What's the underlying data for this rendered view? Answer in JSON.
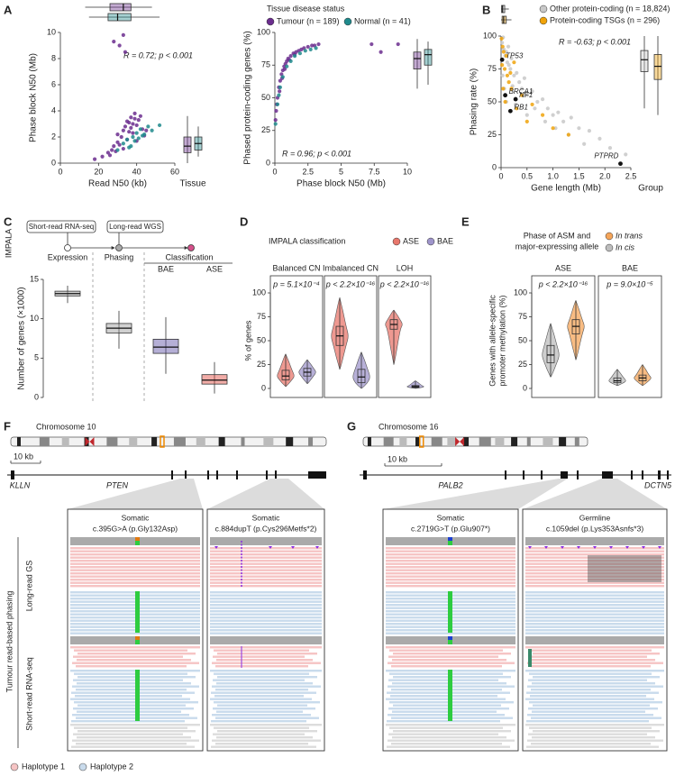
{
  "chart_data": [
    {
      "type": "scatter",
      "panel": "A",
      "xlabel": "Read N50 (kb)",
      "ylabel": "Phase block N50 (Mb)",
      "side_label": "Tissue",
      "annotation": "R = 0.72; p < 0.001",
      "xlim": [
        0,
        60
      ],
      "xticks": [
        0,
        20,
        40,
        60
      ],
      "ylim": [
        0,
        10
      ],
      "yticks": [
        0,
        2,
        4,
        6,
        8,
        10
      ],
      "series": [
        {
          "color": "#6b2d8e",
          "x": [
            22,
            25,
            27,
            28,
            29,
            30,
            30,
            31,
            32,
            33,
            33,
            34,
            35,
            35,
            36,
            37,
            37,
            38,
            39,
            40,
            41,
            42,
            43,
            44,
            28,
            31,
            34,
            36,
            38,
            40,
            18,
            26,
            33,
            39,
            45
          ],
          "values": [
            0.5,
            0.8,
            1.0,
            1.3,
            0.9,
            1.6,
            2.2,
            1.4,
            2.0,
            2.5,
            1.1,
            2.8,
            3.2,
            1.8,
            2.4,
            3.5,
            2.7,
            3.0,
            3.8,
            2.9,
            3.3,
            3.6,
            2.6,
            2.1,
            9.3,
            9.0,
            8.5,
            3.1,
            2.3,
            1.7,
            0.3,
            0.6,
            9.8,
            3.4,
            2.5
          ],
          "top_box": [
            13,
            26,
            33,
            37,
            48
          ],
          "side_box": [
            0,
            0.8,
            1.3,
            2.0,
            3.6
          ]
        },
        {
          "color": "#1f8a8c",
          "x": [
            30,
            33,
            35,
            37,
            38,
            40,
            41,
            42,
            44,
            46,
            48,
            52,
            36,
            39,
            43
          ],
          "values": [
            1.0,
            1.5,
            1.8,
            1.3,
            2.0,
            2.3,
            1.9,
            2.6,
            2.2,
            2.8,
            2.5,
            2.9,
            1.2,
            1.7,
            2.1
          ],
          "top_box": [
            15,
            25,
            30,
            37,
            52
          ],
          "side_box": [
            0.5,
            1.0,
            1.5,
            2.0,
            2.8
          ]
        }
      ]
    },
    {
      "type": "scatter",
      "xlabel": "Phase block N50 (Mb)",
      "ylabel": "Phased protein-coding genes (%)",
      "annotation": "R = 0.96; p < 0.001",
      "legend_title": "Tissue disease status",
      "xlim": [
        0,
        10
      ],
      "xticks": [
        0,
        2.5,
        5,
        7.5,
        10
      ],
      "ylim": [
        0,
        100
      ],
      "yticks": [
        0,
        25,
        50,
        75,
        100
      ],
      "series": [
        {
          "name": "Tumour (n = 189)",
          "color": "#6b2d8e",
          "x": [
            0.1,
            0.2,
            0.3,
            0.4,
            0.5,
            0.6,
            0.7,
            0.8,
            0.9,
            1.0,
            1.2,
            1.4,
            1.6,
            1.8,
            2.0,
            2.2,
            2.5,
            2.8,
            3.0,
            3.3,
            0.15,
            0.35,
            0.55,
            0.75,
            1.1,
            1.5,
            7.3,
            8.0,
            9.3,
            0.05
          ],
          "values": [
            40,
            50,
            58,
            63,
            68,
            71,
            74,
            76,
            78,
            80,
            82,
            84,
            85,
            86,
            87,
            88,
            89,
            90,
            90,
            91,
            45,
            55,
            65,
            72,
            79,
            83,
            91,
            85,
            91,
            33
          ],
          "side_box": [
            57,
            72,
            80,
            85,
            95
          ]
        },
        {
          "name": "Normal (n = 41)",
          "color": "#1f8a8c",
          "x": [
            0.2,
            0.4,
            0.6,
            0.9,
            1.2,
            1.5,
            1.9,
            2.3,
            2.7,
            3.1,
            0.05,
            0.3
          ],
          "values": [
            45,
            58,
            66,
            74,
            78,
            82,
            84,
            86,
            87,
            88,
            30,
            52
          ],
          "side_box": [
            60,
            75,
            83,
            87,
            93
          ]
        }
      ]
    },
    {
      "type": "scatter",
      "panel": "B",
      "xlabel": "Gene length (Mb)",
      "ylabel": "Phasing rate (%)",
      "side_label": "Group",
      "annotation": "R = -0.63; p < 0.001",
      "xlim": [
        0,
        2.5
      ],
      "xticks": [
        0,
        0.5,
        {
          "value": 1,
          "label": "1.0"
        },
        1.5,
        {
          "value": 2,
          "label": "2.0"
        },
        2.5
      ],
      "ylim": [
        0,
        100
      ],
      "yticks": [
        0,
        25,
        50,
        75,
        100
      ],
      "series": [
        {
          "name": "Other protein-coding (n = 18,824)",
          "color": "#c8c8c8",
          "x": [
            0.02,
            0.05,
            0.08,
            0.1,
            0.12,
            0.15,
            0.18,
            0.2,
            0.25,
            0.3,
            0.35,
            0.4,
            0.45,
            0.5,
            0.6,
            0.7,
            0.8,
            0.9,
            1.0,
            1.1,
            1.2,
            1.35,
            1.5,
            1.7,
            1.9,
            2.1,
            2.4,
            0.03,
            0.06,
            0.1,
            0.14,
            0.22,
            0.28,
            0.5,
            0.65,
            0.85,
            1.05,
            1.3,
            1.6,
            0.04
          ],
          "values": [
            95,
            90,
            85,
            88,
            80,
            78,
            75,
            83,
            70,
            72,
            65,
            60,
            68,
            55,
            58,
            50,
            52,
            45,
            40,
            42,
            35,
            38,
            30,
            28,
            22,
            15,
            10,
            70,
            60,
            50,
            92,
            62,
            48,
            40,
            45,
            35,
            30,
            25,
            18,
            99
          ],
          "top_box": [
            0,
            0.01,
            0.03,
            0.07,
            0.15
          ],
          "side_box": [
            45,
            73,
            82,
            89,
            100
          ]
        },
        {
          "name": "Protein-coding TSGs (n = 296)",
          "color": "#f0a30a",
          "x": [
            0.01,
            0.03,
            0.05,
            0.07,
            0.1,
            0.12,
            0.15,
            0.2,
            0.25,
            0.3,
            0.4,
            0.5,
            0.6,
            0.8,
            1.0,
            1.3,
            0.02,
            0.04,
            0.08,
            0.18
          ],
          "values": [
            98,
            92,
            88,
            75,
            85,
            70,
            65,
            60,
            80,
            45,
            55,
            35,
            48,
            40,
            30,
            25,
            78,
            60,
            50,
            72
          ],
          "top_box": [
            0,
            0.02,
            0.05,
            0.1,
            0.2
          ],
          "side_box": [
            40,
            67,
            77,
            86,
            100
          ]
        }
      ],
      "highlight_color": "#111111",
      "highlights": [
        {
          "label": "TP53",
          "x": 0.02,
          "y": 82
        },
        {
          "label": "BRCA1",
          "x": 0.08,
          "y": 55
        },
        {
          "label": "NF1",
          "x": 0.28,
          "y": 52
        },
        {
          "label": "RB1",
          "x": 0.18,
          "y": 43
        },
        {
          "label": "PTPRD",
          "x": 2.3,
          "y": 3
        }
      ]
    },
    {
      "type": "box",
      "panel": "C",
      "side_label": "IMPALA",
      "inputs": [
        "Short-read RNA-seq",
        "Long-read WGS"
      ],
      "group_label": "Classification",
      "categories": [
        "Expression",
        "Phasing",
        "BAE",
        "ASE"
      ],
      "colors": [
        "#9a9a9a",
        "#9a9a9a",
        "#5b4ea3",
        "#e0463c"
      ],
      "stats": [
        [
          12.0,
          12.9,
          13.2,
          13.5,
          14.2
        ],
        [
          6.2,
          8.2,
          8.8,
          9.4,
          11.0
        ],
        [
          3.0,
          5.6,
          6.4,
          7.4,
          10.2
        ],
        [
          0.5,
          1.7,
          2.2,
          2.9,
          4.5
        ]
      ],
      "ylabel": "Number of genes (×1000)",
      "ylim": [
        0,
        15
      ],
      "yticks": [
        0,
        5,
        10,
        15
      ]
    },
    {
      "type": "violin",
      "panel": "D",
      "title": [
        "IMPALA classification"
      ],
      "ylabel": [
        "% of genes"
      ],
      "facets": [
        {
          "title": "Balanced CN",
          "annotation": "p = 5.1×10⁻⁴"
        },
        {
          "title": "Imbalanced CN",
          "annotation": "p < 2.2×10⁻¹⁶"
        },
        {
          "title": "LOH",
          "annotation": "p < 2.2×10⁻¹⁶"
        }
      ],
      "series": [
        {
          "name": "ASE",
          "color": "#e8776c",
          "values": [
            [
              2,
              9,
              13,
              19,
              36
            ],
            [
              20,
              45,
              55,
              65,
              95
            ],
            [
              25,
              62,
              67,
              72,
              82
            ]
          ]
        },
        {
          "name": "BAE",
          "color": "#9f95cb",
          "values": [
            [
              5,
              13,
              17,
              21,
              30
            ],
            [
              0,
              6,
              12,
              20,
              38
            ],
            [
              0,
              1,
              2,
              3,
              8
            ]
          ]
        }
      ],
      "ylim": [
        0,
        100
      ],
      "yticks": [
        0,
        25,
        50,
        75,
        100
      ]
    },
    {
      "type": "violin",
      "panel": "E",
      "title": [
        "Phase of ASM and",
        "major-expressing allele"
      ],
      "ylabel": [
        "Genes with allele-specific",
        "promoter methylation (%)"
      ],
      "facets": [
        {
          "title": "ASE",
          "annotation": "p < 2.2×10⁻¹⁶"
        },
        {
          "title": "BAE",
          "annotation": "p = 9.0×10⁻⁵"
        }
      ],
      "series": [
        {
          "name": "In trans",
          "color": "#f5a55a",
          "values": [
            [
              30,
              57,
              65,
              72,
              92
            ],
            [
              3,
              8,
              11,
              14,
              25
            ]
          ]
        },
        {
          "name": "In cis",
          "color": "#bdbdbd",
          "values": [
            [
              12,
              27,
              35,
              45,
              68
            ],
            [
              3,
              6,
              8,
              11,
              20
            ]
          ]
        }
      ],
      "ylim": [
        0,
        100
      ],
      "yticks": [
        0,
        25,
        50,
        75,
        100
      ]
    }
  ],
  "genome_views": [
    {
      "panel": "F",
      "chromosome": "Chromosome 10",
      "scale": "10 kb",
      "genes": [
        "KLLN",
        "PTEN"
      ],
      "views": [
        {
          "origin": "Somatic",
          "variant": "c.395G>A (p.Gly132Asp)"
        },
        {
          "origin": "Somatic",
          "variant": "c.884dupT (p.Cys296Metfs*2)"
        }
      ]
    },
    {
      "panel": "G",
      "chromosome": "Chromosome 16",
      "scale": "10 kb",
      "genes": [
        "PALB2",
        "DCTN5"
      ],
      "views": [
        {
          "origin": "Somatic",
          "variant": "c.2719G>T (p.Glu907*)"
        },
        {
          "origin": "Germline",
          "variant": "c.1059del (p.Lys353Asnfs*3)"
        }
      ]
    }
  ],
  "track_labels": {
    "group": "Tumour read-based phasing",
    "long": "Long-read GS",
    "short": "Short-read RNA-seq"
  },
  "haplotypes": [
    "Haplotype 1",
    "Haplotype 2"
  ]
}
